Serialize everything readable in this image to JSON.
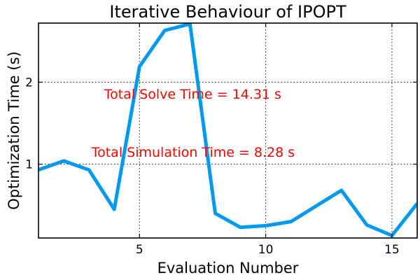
{
  "chart_data": {
    "type": "line",
    "title": "Iterative Behaviour of IPOPT",
    "xlabel": "Evaluation Number",
    "ylabel": "Optimization Time (s)",
    "xlim": [
      1,
      16
    ],
    "ylim": [
      0.1,
      2.72
    ],
    "xticks": [
      5,
      10,
      15
    ],
    "xtick_labels": [
      "5",
      "10",
      "15"
    ],
    "yticks": [
      1,
      2
    ],
    "ytick_labels": [
      "1",
      "2"
    ],
    "grid": true,
    "series": [
      {
        "color": "#0099f0",
        "x": [
          1,
          2,
          3,
          4,
          5,
          6,
          7,
          8,
          9,
          10,
          11,
          12,
          13,
          14,
          15,
          16
        ],
        "y": [
          0.93,
          1.04,
          0.93,
          0.45,
          2.19,
          2.63,
          2.71,
          0.4,
          0.23,
          0.25,
          0.3,
          0.49,
          0.68,
          0.26,
          0.13,
          0.52
        ]
      }
    ],
    "annotations": [
      {
        "text": "Total Solve Time  = 14.31 s",
        "x": 3.6,
        "y": 1.8,
        "color": "#ff0000"
      },
      {
        "text": "Total Simulation Time = 8.28 s",
        "x": 3.1,
        "y": 1.09,
        "color": "#ff0000"
      }
    ]
  }
}
